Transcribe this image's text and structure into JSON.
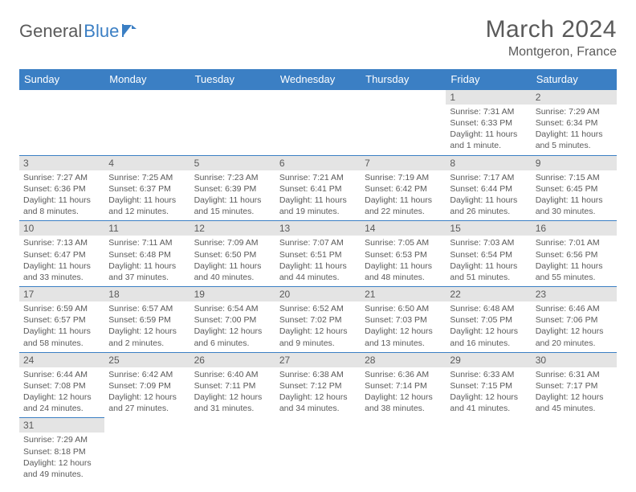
{
  "logo": {
    "text1": "General",
    "text2": "Blue"
  },
  "title": "March 2024",
  "location": "Montgeron, France",
  "colors": {
    "header_bg": "#3b7fc4",
    "header_text": "#ffffff",
    "daynum_bg": "#e4e4e4",
    "text": "#5a5a5a",
    "cell_border": "#3b7fc4",
    "page_bg": "#ffffff"
  },
  "font": {
    "family": "Arial",
    "day_label_size": 13,
    "body_size": 10.5,
    "title_size": 30
  },
  "weekdays": [
    "Sunday",
    "Monday",
    "Tuesday",
    "Wednesday",
    "Thursday",
    "Friday",
    "Saturday"
  ],
  "weeks": [
    [
      null,
      null,
      null,
      null,
      null,
      {
        "n": "1",
        "sr": "7:31 AM",
        "ss": "6:33 PM",
        "dl": "11 hours and 1 minute."
      },
      {
        "n": "2",
        "sr": "7:29 AM",
        "ss": "6:34 PM",
        "dl": "11 hours and 5 minutes."
      }
    ],
    [
      {
        "n": "3",
        "sr": "7:27 AM",
        "ss": "6:36 PM",
        "dl": "11 hours and 8 minutes."
      },
      {
        "n": "4",
        "sr": "7:25 AM",
        "ss": "6:37 PM",
        "dl": "11 hours and 12 minutes."
      },
      {
        "n": "5",
        "sr": "7:23 AM",
        "ss": "6:39 PM",
        "dl": "11 hours and 15 minutes."
      },
      {
        "n": "6",
        "sr": "7:21 AM",
        "ss": "6:41 PM",
        "dl": "11 hours and 19 minutes."
      },
      {
        "n": "7",
        "sr": "7:19 AM",
        "ss": "6:42 PM",
        "dl": "11 hours and 22 minutes."
      },
      {
        "n": "8",
        "sr": "7:17 AM",
        "ss": "6:44 PM",
        "dl": "11 hours and 26 minutes."
      },
      {
        "n": "9",
        "sr": "7:15 AM",
        "ss": "6:45 PM",
        "dl": "11 hours and 30 minutes."
      }
    ],
    [
      {
        "n": "10",
        "sr": "7:13 AM",
        "ss": "6:47 PM",
        "dl": "11 hours and 33 minutes."
      },
      {
        "n": "11",
        "sr": "7:11 AM",
        "ss": "6:48 PM",
        "dl": "11 hours and 37 minutes."
      },
      {
        "n": "12",
        "sr": "7:09 AM",
        "ss": "6:50 PM",
        "dl": "11 hours and 40 minutes."
      },
      {
        "n": "13",
        "sr": "7:07 AM",
        "ss": "6:51 PM",
        "dl": "11 hours and 44 minutes."
      },
      {
        "n": "14",
        "sr": "7:05 AM",
        "ss": "6:53 PM",
        "dl": "11 hours and 48 minutes."
      },
      {
        "n": "15",
        "sr": "7:03 AM",
        "ss": "6:54 PM",
        "dl": "11 hours and 51 minutes."
      },
      {
        "n": "16",
        "sr": "7:01 AM",
        "ss": "6:56 PM",
        "dl": "11 hours and 55 minutes."
      }
    ],
    [
      {
        "n": "17",
        "sr": "6:59 AM",
        "ss": "6:57 PM",
        "dl": "11 hours and 58 minutes."
      },
      {
        "n": "18",
        "sr": "6:57 AM",
        "ss": "6:59 PM",
        "dl": "12 hours and 2 minutes."
      },
      {
        "n": "19",
        "sr": "6:54 AM",
        "ss": "7:00 PM",
        "dl": "12 hours and 6 minutes."
      },
      {
        "n": "20",
        "sr": "6:52 AM",
        "ss": "7:02 PM",
        "dl": "12 hours and 9 minutes."
      },
      {
        "n": "21",
        "sr": "6:50 AM",
        "ss": "7:03 PM",
        "dl": "12 hours and 13 minutes."
      },
      {
        "n": "22",
        "sr": "6:48 AM",
        "ss": "7:05 PM",
        "dl": "12 hours and 16 minutes."
      },
      {
        "n": "23",
        "sr": "6:46 AM",
        "ss": "7:06 PM",
        "dl": "12 hours and 20 minutes."
      }
    ],
    [
      {
        "n": "24",
        "sr": "6:44 AM",
        "ss": "7:08 PM",
        "dl": "12 hours and 24 minutes."
      },
      {
        "n": "25",
        "sr": "6:42 AM",
        "ss": "7:09 PM",
        "dl": "12 hours and 27 minutes."
      },
      {
        "n": "26",
        "sr": "6:40 AM",
        "ss": "7:11 PM",
        "dl": "12 hours and 31 minutes."
      },
      {
        "n": "27",
        "sr": "6:38 AM",
        "ss": "7:12 PM",
        "dl": "12 hours and 34 minutes."
      },
      {
        "n": "28",
        "sr": "6:36 AM",
        "ss": "7:14 PM",
        "dl": "12 hours and 38 minutes."
      },
      {
        "n": "29",
        "sr": "6:33 AM",
        "ss": "7:15 PM",
        "dl": "12 hours and 41 minutes."
      },
      {
        "n": "30",
        "sr": "6:31 AM",
        "ss": "7:17 PM",
        "dl": "12 hours and 45 minutes."
      }
    ],
    [
      {
        "n": "31",
        "sr": "7:29 AM",
        "ss": "8:18 PM",
        "dl": "12 hours and 49 minutes."
      },
      null,
      null,
      null,
      null,
      null,
      null
    ]
  ],
  "labels": {
    "sunrise": "Sunrise:",
    "sunset": "Sunset:",
    "daylight": "Daylight:"
  }
}
